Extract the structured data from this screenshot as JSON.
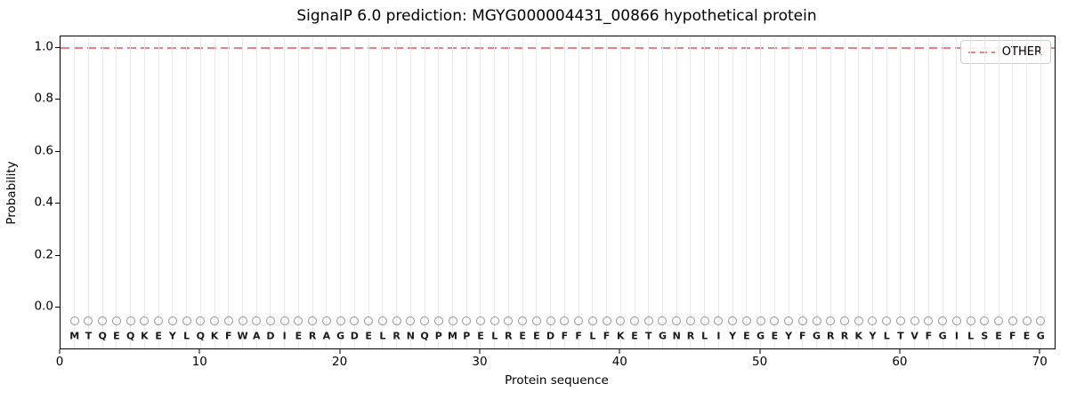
{
  "chart_data": {
    "type": "line",
    "title": "SignalP 6.0 prediction: MGYG000004431_00866 hypothetical protein",
    "xlabel": "Protein sequence",
    "ylabel": "Probability",
    "xlim": [
      0,
      71
    ],
    "ylim": [
      -0.157,
      1.043
    ],
    "x_ticks": [
      0,
      10,
      20,
      30,
      40,
      50,
      60,
      70
    ],
    "y_ticks": [
      0.0,
      0.2,
      0.4,
      0.6,
      0.8,
      1.0
    ],
    "grid": "vertical-per-residue",
    "series": [
      {
        "name": "OTHER",
        "style": "dashed",
        "color": "#f08080",
        "y_constant": 1.0
      }
    ],
    "legend": {
      "position": "upper right",
      "entries": [
        {
          "label": "OTHER",
          "color": "#f08080",
          "style": "dashed"
        }
      ]
    },
    "sequence": "MTQEQKEYLQKFWADIERAGDELRNQPMPELREEDFFLFKETGNRLIYEGEYFGRRKYLTVFGILSEFEG",
    "sequence_length": 70,
    "marker_y": -0.05,
    "letter_y": -0.108,
    "colors": {
      "line_other": "#f08080",
      "grid": "#eaeaea",
      "marker_stroke": "#949494",
      "letter": "#1a1a1a",
      "axis": "#000000",
      "background": "#ffffff"
    }
  }
}
